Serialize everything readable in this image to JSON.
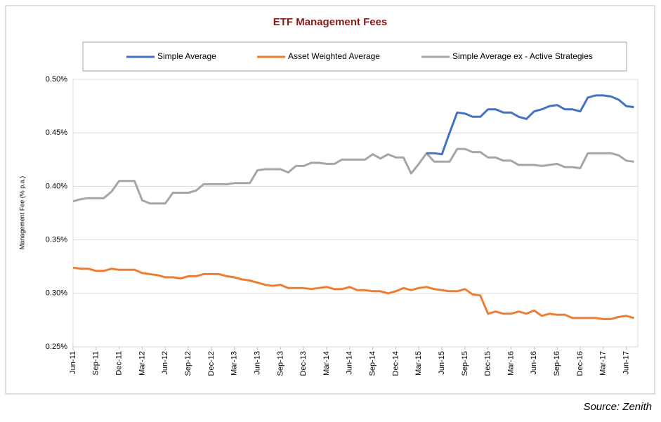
{
  "chart_data": {
    "type": "line",
    "title": "ETF Management Fees",
    "y_label": "Management Fee (% p.a.)",
    "source": "Source: Zenith",
    "grid": true,
    "legend": "top",
    "categories": [
      "Jun-11",
      null,
      null,
      "Sep-11",
      null,
      null,
      "Dec-11",
      null,
      null,
      "Mar-12",
      null,
      null,
      "Jun-12",
      null,
      null,
      "Sep-12",
      null,
      null,
      "Dec-12",
      null,
      null,
      "Mar-13",
      null,
      null,
      "Jun-13",
      null,
      null,
      "Sep-13",
      null,
      null,
      "Dec-13",
      null,
      null,
      "Mar-14",
      null,
      null,
      "Jun-14",
      null,
      null,
      "Sep-14",
      null,
      null,
      "Dec-14",
      null,
      null,
      "Mar-15",
      null,
      null,
      "Jun-15",
      null,
      null,
      "Sep-15",
      null,
      null,
      "Dec-15",
      null,
      null,
      "Mar-16",
      null,
      null,
      "Jun-16",
      null,
      null,
      "Sep-16",
      null,
      null,
      "Dec-16",
      null,
      null,
      "Mar-17",
      null,
      null,
      "Jun-17",
      null
    ],
    "ylim": [
      0.25,
      0.5
    ],
    "yticks": [
      {
        "value": 0.25,
        "label": "0.25%"
      },
      {
        "value": 0.3,
        "label": "0.30%"
      },
      {
        "value": 0.35,
        "label": "0.35%"
      },
      {
        "value": 0.4,
        "label": "0.40%"
      },
      {
        "value": 0.45,
        "label": "0.45%"
      },
      {
        "value": 0.5,
        "label": "0.50%"
      }
    ],
    "series": [
      {
        "name": "Simple Average",
        "color": "#4472c4",
        "values": [
          null,
          null,
          null,
          null,
          null,
          null,
          null,
          null,
          null,
          null,
          null,
          null,
          null,
          null,
          null,
          null,
          null,
          null,
          null,
          null,
          null,
          null,
          null,
          null,
          null,
          null,
          null,
          null,
          null,
          null,
          null,
          null,
          null,
          null,
          null,
          null,
          null,
          null,
          null,
          null,
          null,
          null,
          null,
          null,
          null,
          null,
          0.431,
          0.431,
          0.43,
          0.45,
          0.469,
          0.468,
          0.465,
          0.465,
          0.472,
          0.472,
          0.469,
          0.469,
          0.465,
          0.463,
          0.47,
          0.472,
          0.475,
          0.476,
          0.472,
          0.472,
          0.47,
          0.483,
          0.485,
          0.485,
          0.484,
          0.481,
          0.475,
          0.474
        ]
      },
      {
        "name": "Asset Weighted Average",
        "color": "#ed7d31",
        "values": [
          0.324,
          0.323,
          0.323,
          0.321,
          0.321,
          0.323,
          0.322,
          0.322,
          0.322,
          0.319,
          0.318,
          0.317,
          0.315,
          0.315,
          0.314,
          0.316,
          0.316,
          0.318,
          0.318,
          0.318,
          0.316,
          0.315,
          0.313,
          0.312,
          0.31,
          0.308,
          0.307,
          0.308,
          0.305,
          0.305,
          0.305,
          0.304,
          0.305,
          0.306,
          0.304,
          0.304,
          0.306,
          0.303,
          0.303,
          0.302,
          0.302,
          0.3,
          0.302,
          0.305,
          0.303,
          0.305,
          0.306,
          0.304,
          0.303,
          0.302,
          0.302,
          0.304,
          0.299,
          0.298,
          0.281,
          0.283,
          0.281,
          0.281,
          0.283,
          0.281,
          0.284,
          0.279,
          0.281,
          0.28,
          0.28,
          0.277,
          0.277,
          0.277,
          0.277,
          0.276,
          0.276,
          0.278,
          0.279,
          0.277
        ]
      },
      {
        "name": "Simple Average ex - Active Strategies",
        "color": "#a5a5a5",
        "values": [
          0.386,
          0.388,
          0.389,
          0.389,
          0.389,
          0.395,
          0.405,
          0.405,
          0.405,
          0.387,
          0.384,
          0.384,
          0.384,
          0.394,
          0.394,
          0.394,
          0.396,
          0.402,
          0.402,
          0.402,
          0.402,
          0.403,
          0.403,
          0.403,
          0.415,
          0.416,
          0.416,
          0.416,
          0.413,
          0.419,
          0.419,
          0.422,
          0.422,
          0.421,
          0.421,
          0.425,
          0.425,
          0.425,
          0.425,
          0.43,
          0.426,
          0.43,
          0.427,
          0.427,
          0.412,
          0.421,
          0.431,
          0.423,
          0.423,
          0.423,
          0.435,
          0.435,
          0.432,
          0.432,
          0.427,
          0.427,
          0.424,
          0.424,
          0.42,
          0.42,
          0.42,
          0.419,
          0.42,
          0.421,
          0.418,
          0.418,
          0.417,
          0.431,
          0.431,
          0.431,
          0.431,
          0.429,
          0.424,
          0.423
        ]
      }
    ]
  }
}
